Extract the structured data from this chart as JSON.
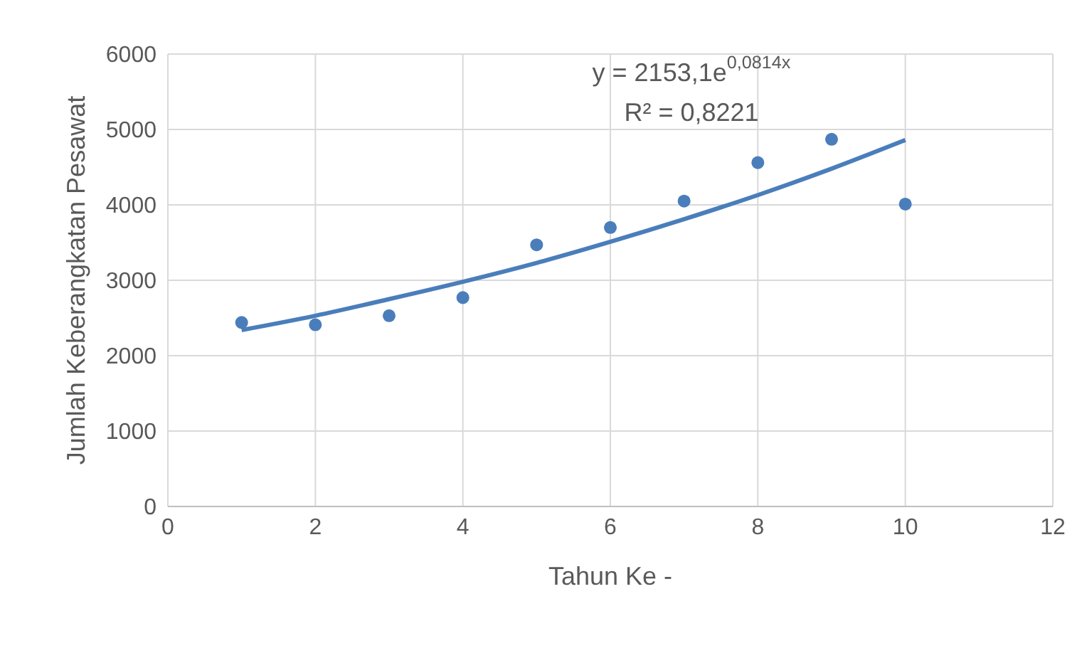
{
  "chart_data": {
    "type": "scatter",
    "xlabel": "Tahun Ke -",
    "ylabel": "Jumlah Keberangkatan Pesawat",
    "x": [
      1,
      2,
      3,
      4,
      5,
      6,
      7,
      8,
      9,
      10
    ],
    "series": [
      {
        "color": "#4a7ebb",
        "marker": "circle",
        "values": [
          2440,
          2410,
          2530,
          2770,
          3470,
          3700,
          4050,
          4560,
          4870,
          4010
        ]
      },
      {
        "type": "line",
        "color": "#4a7ebb",
        "marker": "none",
        "line_style": "solid",
        "values": [
          2340,
          2530,
          2750,
          2980,
          3230,
          3510,
          3810,
          4130,
          4480,
          4860
        ]
      }
    ],
    "xlim": [
      0,
      12
    ],
    "xticks": [
      0,
      2,
      4,
      6,
      8,
      10,
      12
    ],
    "ylim": [
      0,
      6000
    ],
    "yticks": [
      0,
      1000,
      2000,
      3000,
      4000,
      5000,
      6000
    ],
    "grid": true,
    "annotations": [
      "y = 2153,1e$^{0,0814x}$",
      "R² = 0,8221"
    ]
  }
}
